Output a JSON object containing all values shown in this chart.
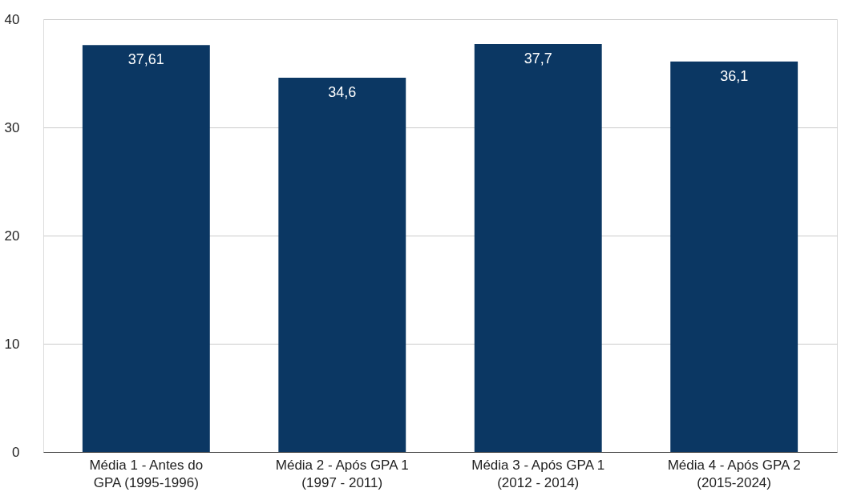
{
  "chart_data": {
    "type": "bar",
    "categories": [
      "Média 1 - Antes do\nGPA (1995-1996)",
      "Média 2 - Após GPA 1\n(1997 - 2011)",
      "Média 3 - Após GPA 1\n(2012 - 2014)",
      "Média 4 - Após GPA 2\n(2015-2024)"
    ],
    "values": [
      37.61,
      34.6,
      37.7,
      36.1
    ],
    "value_labels": [
      "37,61",
      "34,6",
      "37,7",
      "36,1"
    ],
    "color": "#0b3763",
    "ylim": [
      0,
      40
    ],
    "yticks": [
      0,
      10,
      20,
      30,
      40
    ],
    "grid": "y"
  }
}
